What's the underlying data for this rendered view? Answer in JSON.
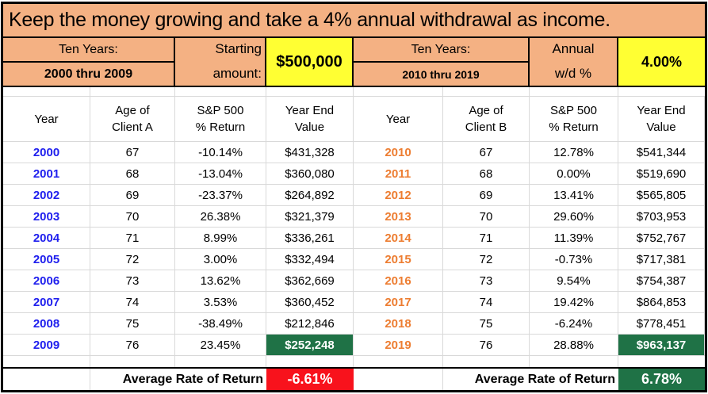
{
  "title": "Keep the money growing and take a 4% annual withdrawal as income.",
  "colors": {
    "salmon": "#F4B183",
    "yellow": "#FFFF33",
    "green": "#1F7246",
    "red": "#F8121C",
    "blue_year": "#2020EE",
    "orange_year": "#ED7D31",
    "gridline": "#D9D9D9"
  },
  "header": {
    "left": {
      "period_label": "Ten Years:",
      "period_range": "2000 thru 2009",
      "starting_label": "Starting\namount:",
      "starting_amount": "$500,000"
    },
    "right": {
      "period_label": "Ten Years:",
      "period_range": "2010 thru 2019",
      "wd_label": "Annual\nw/d %",
      "wd_percent": "4.00%"
    }
  },
  "tables": [
    {
      "side": "left",
      "year_color": "#2020EE",
      "headers": [
        "Year",
        "Age of\nClient A",
        "S&P 500\n% Return",
        "Year End\nValue"
      ],
      "rows": [
        {
          "year": "2000",
          "age": "67",
          "return": "-10.14%",
          "value": "$431,328",
          "highlight": false
        },
        {
          "year": "2001",
          "age": "68",
          "return": "-13.04%",
          "value": "$360,080",
          "highlight": false
        },
        {
          "year": "2002",
          "age": "69",
          "return": "-23.37%",
          "value": "$264,892",
          "highlight": false
        },
        {
          "year": "2003",
          "age": "70",
          "return": "26.38%",
          "value": "$321,379",
          "highlight": false
        },
        {
          "year": "2004",
          "age": "71",
          "return": "8.99%",
          "value": "$336,261",
          "highlight": false
        },
        {
          "year": "2005",
          "age": "72",
          "return": "3.00%",
          "value": "$332,494",
          "highlight": false
        },
        {
          "year": "2006",
          "age": "73",
          "return": "13.62%",
          "value": "$362,669",
          "highlight": false
        },
        {
          "year": "2007",
          "age": "74",
          "return": "3.53%",
          "value": "$360,452",
          "highlight": false
        },
        {
          "year": "2008",
          "age": "75",
          "return": "-38.49%",
          "value": "$212,846",
          "highlight": false
        },
        {
          "year": "2009",
          "age": "76",
          "return": "23.45%",
          "value": "$252,248",
          "highlight": true
        }
      ],
      "average_label": "Average Rate of Return",
      "average_value": "-6.61%",
      "average_bg": "#F8121C"
    },
    {
      "side": "right",
      "year_color": "#ED7D31",
      "headers": [
        "Year",
        "Age of\nClient B",
        "S&P 500\n% Return",
        "Year End\nValue"
      ],
      "rows": [
        {
          "year": "2010",
          "age": "67",
          "return": "12.78%",
          "value": "$541,344",
          "highlight": false
        },
        {
          "year": "2011",
          "age": "68",
          "return": "0.00%",
          "value": "$519,690",
          "highlight": false
        },
        {
          "year": "2012",
          "age": "69",
          "return": "13.41%",
          "value": "$565,805",
          "highlight": false
        },
        {
          "year": "2013",
          "age": "70",
          "return": "29.60%",
          "value": "$703,953",
          "highlight": false
        },
        {
          "year": "2014",
          "age": "71",
          "return": "11.39%",
          "value": "$752,767",
          "highlight": false
        },
        {
          "year": "2015",
          "age": "72",
          "return": "-0.73%",
          "value": "$717,381",
          "highlight": false
        },
        {
          "year": "2016",
          "age": "73",
          "return": "9.54%",
          "value": "$754,387",
          "highlight": false
        },
        {
          "year": "2017",
          "age": "74",
          "return": "19.42%",
          "value": "$864,853",
          "highlight": false
        },
        {
          "year": "2018",
          "age": "75",
          "return": "-6.24%",
          "value": "$778,451",
          "highlight": false
        },
        {
          "year": "2019",
          "age": "76",
          "return": "28.88%",
          "value": "$963,137",
          "highlight": true
        }
      ],
      "average_label": "Average Rate of Return",
      "average_value": "6.78%",
      "average_bg": "#1F7246"
    }
  ]
}
